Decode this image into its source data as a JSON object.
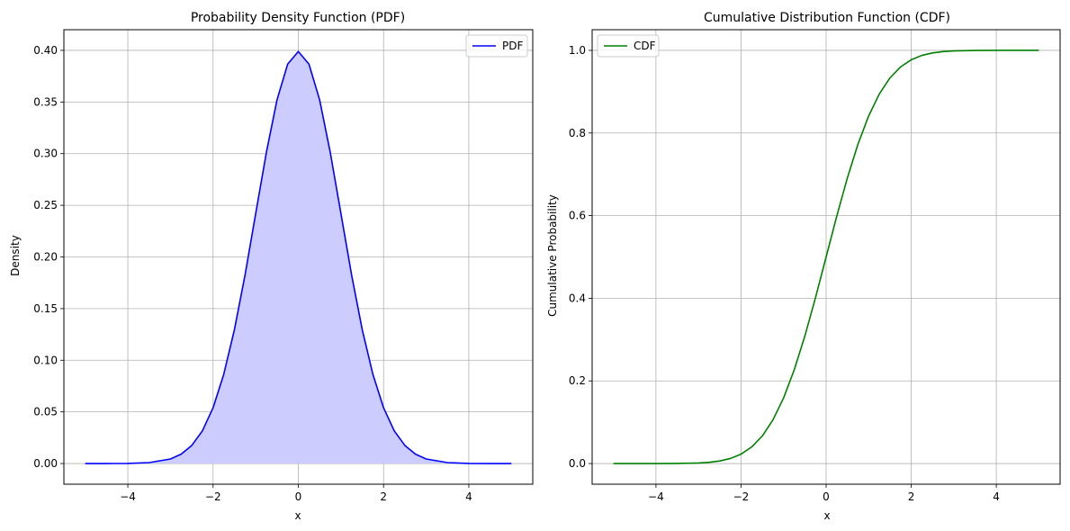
{
  "chart_data": [
    {
      "type": "line",
      "title": "Probability Density Function (PDF)",
      "xlabel": "x",
      "ylabel": "Density",
      "xlim": [
        -5.5,
        5.5
      ],
      "ylim": [
        -0.02,
        0.42
      ],
      "xticks": [
        -4,
        -2,
        0,
        2,
        4
      ],
      "yticks": [
        0.0,
        0.05,
        0.1,
        0.15,
        0.2,
        0.25,
        0.3,
        0.35,
        0.4
      ],
      "xtick_labels": [
        "−4",
        "−2",
        "0",
        "2",
        "4"
      ],
      "ytick_labels": [
        "0.00",
        "0.05",
        "0.10",
        "0.15",
        "0.20",
        "0.25",
        "0.30",
        "0.35",
        "0.40"
      ],
      "grid": true,
      "legend": "upper-right",
      "fill_under": true,
      "series": [
        {
          "name": "PDF",
          "color": "#0000ff",
          "fill_color": "#ccccff",
          "x": [
            -5.0,
            -4.5,
            -4.0,
            -3.5,
            -3.0,
            -2.75,
            -2.5,
            -2.25,
            -2.0,
            -1.75,
            -1.5,
            -1.25,
            -1.0,
            -0.75,
            -0.5,
            -0.25,
            0.0,
            0.25,
            0.5,
            0.75,
            1.0,
            1.25,
            1.5,
            1.75,
            2.0,
            2.25,
            2.5,
            2.75,
            3.0,
            3.5,
            4.0,
            4.5,
            5.0
          ],
          "y": [
            0.0,
            0.0,
            0.0001,
            0.0009,
            0.0044,
            0.0091,
            0.0175,
            0.0317,
            0.054,
            0.0863,
            0.1295,
            0.1826,
            0.242,
            0.3011,
            0.3521,
            0.3867,
            0.3989,
            0.3867,
            0.3521,
            0.3011,
            0.242,
            0.1826,
            0.1295,
            0.0863,
            0.054,
            0.0317,
            0.0175,
            0.0091,
            0.0044,
            0.0009,
            0.0001,
            0.0,
            0.0
          ]
        }
      ]
    },
    {
      "type": "line",
      "title": "Cumulative Distribution Function (CDF)",
      "xlabel": "x",
      "ylabel": "Cumulative Probability",
      "xlim": [
        -5.5,
        5.5
      ],
      "ylim": [
        -0.05,
        1.05
      ],
      "xticks": [
        -4,
        -2,
        0,
        2,
        4
      ],
      "yticks": [
        0.0,
        0.2,
        0.4,
        0.6,
        0.8,
        1.0
      ],
      "xtick_labels": [
        "−4",
        "−2",
        "0",
        "2",
        "4"
      ],
      "ytick_labels": [
        "0.0",
        "0.2",
        "0.4",
        "0.6",
        "0.8",
        "1.0"
      ],
      "grid": true,
      "legend": "upper-left",
      "fill_under": false,
      "series": [
        {
          "name": "CDF",
          "color": "#008000",
          "x": [
            -5.0,
            -4.5,
            -4.0,
            -3.5,
            -3.0,
            -2.75,
            -2.5,
            -2.25,
            -2.0,
            -1.75,
            -1.5,
            -1.25,
            -1.0,
            -0.75,
            -0.5,
            -0.25,
            0.0,
            0.25,
            0.5,
            0.75,
            1.0,
            1.25,
            1.5,
            1.75,
            2.0,
            2.25,
            2.5,
            2.75,
            3.0,
            3.5,
            4.0,
            4.5,
            5.0
          ],
          "y": [
            0.0,
            0.0,
            0.0,
            0.0002,
            0.0013,
            0.003,
            0.0062,
            0.0122,
            0.0228,
            0.0401,
            0.0668,
            0.1056,
            0.1587,
            0.2266,
            0.3085,
            0.4013,
            0.5,
            0.5987,
            0.6915,
            0.7734,
            0.8413,
            0.8944,
            0.9332,
            0.9599,
            0.9772,
            0.9878,
            0.9938,
            0.997,
            0.9987,
            0.9998,
            1.0,
            1.0,
            1.0
          ]
        }
      ]
    }
  ]
}
